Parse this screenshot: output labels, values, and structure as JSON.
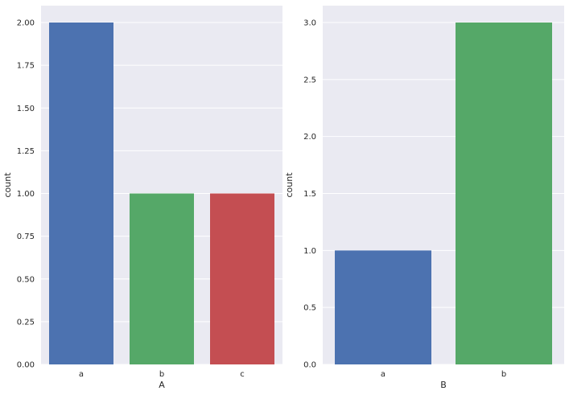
{
  "chart_data": [
    {
      "type": "bar",
      "categories": [
        "a",
        "b",
        "c"
      ],
      "values": [
        2,
        1,
        1
      ],
      "colors": [
        "#4c72b0",
        "#55a868",
        "#c44e52"
      ],
      "xlabel": "A",
      "ylabel": "count",
      "ylim": [
        0,
        2.0
      ],
      "yticks": [
        0.0,
        0.25,
        0.5,
        0.75,
        1.0,
        1.25,
        1.5,
        1.75,
        2.0
      ],
      "ytick_labels": [
        "0.00",
        "0.25",
        "0.50",
        "0.75",
        "1.00",
        "1.25",
        "1.50",
        "1.75",
        "2.00"
      ],
      "grid": true,
      "background": "#eaeaf2"
    },
    {
      "type": "bar",
      "categories": [
        "a",
        "b"
      ],
      "values": [
        1,
        3
      ],
      "colors": [
        "#4c72b0",
        "#55a868"
      ],
      "xlabel": "B",
      "ylabel": "count",
      "ylim": [
        0,
        3.0
      ],
      "yticks": [
        0.0,
        0.5,
        1.0,
        1.5,
        2.0,
        2.5,
        3.0
      ],
      "ytick_labels": [
        "0.0",
        "0.5",
        "1.0",
        "1.5",
        "2.0",
        "2.5",
        "3.0"
      ],
      "grid": true,
      "background": "#eaeaf2"
    }
  ]
}
